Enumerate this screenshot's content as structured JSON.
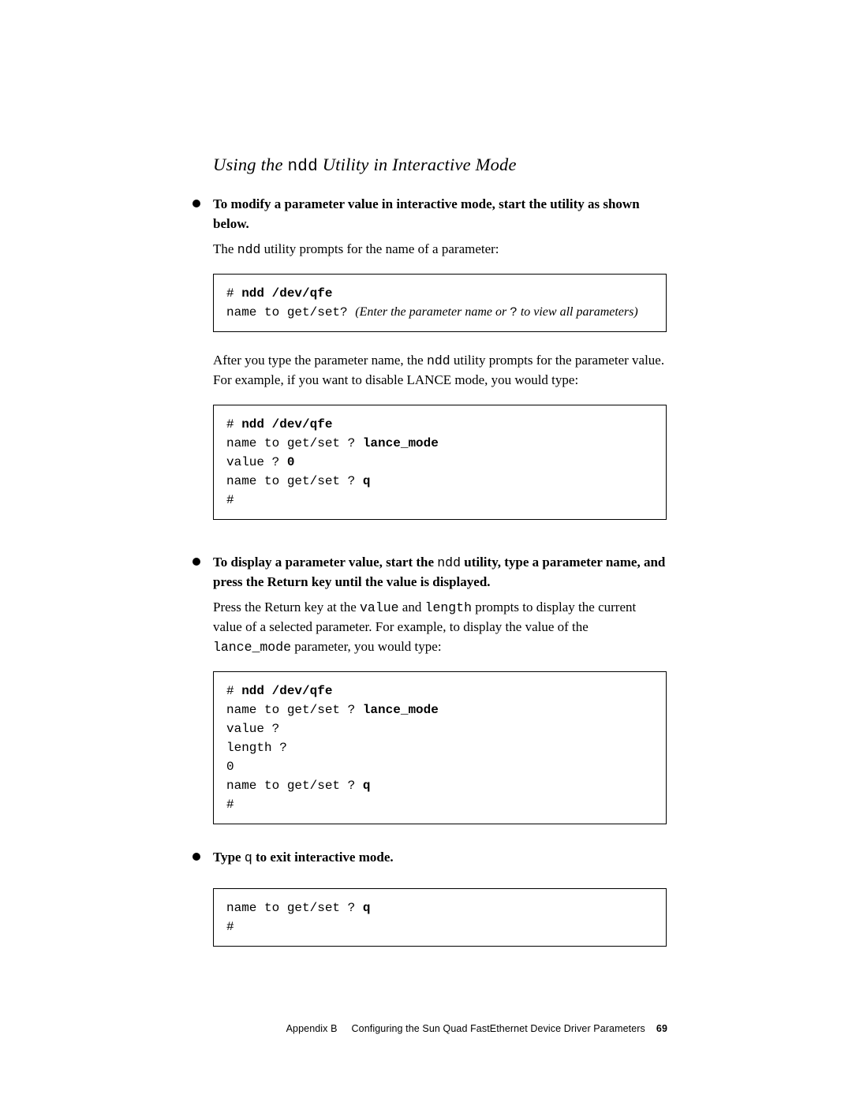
{
  "heading": {
    "pre": "Using the ",
    "mono": "ndd",
    "post": " Utility in Interactive Mode"
  },
  "item1": {
    "lead": "To modify a parameter value in interactive mode, start the utility as shown below.",
    "body": {
      "pre": "The ",
      "mono": "ndd",
      "post": " utility prompts for the name of a parameter:"
    },
    "code": {
      "l1_prefix": "# ",
      "l1_cmd": "ndd /dev/qfe",
      "l2_text": "name to get/set? ",
      "l2_italic_pre": "(Enter the parameter name or ",
      "l2_mono": "?",
      "l2_italic_post": " to view all parameters)"
    }
  },
  "after1": {
    "pre": "After you type the parameter name, the ",
    "mono": "ndd",
    "post": " utility prompts for the parameter value. For example, if you want to disable LANCE mode, you would type:"
  },
  "code2": {
    "l1_prefix": "# ",
    "l1_cmd": "ndd /dev/qfe",
    "l2_text": "name to get/set ? ",
    "l2_bold": "lance_mode",
    "l3_text": "value ? ",
    "l3_bold": "0",
    "l4_text": "name to get/set ? ",
    "l4_bold": "q",
    "l5_text": "#"
  },
  "item2": {
    "lead_pre": "To display a parameter value, start the ",
    "lead_mono": "ndd",
    "lead_post": " utility, type a parameter name, and press the Return key until the value is displayed.",
    "body_pre": "Press the Return key at the ",
    "body_mono1": "value",
    "body_mid1": " and ",
    "body_mono2": "length",
    "body_mid2": " prompts to display the current value of a selected parameter. For example, to display the value of the ",
    "body_mono3": "lance_mode",
    "body_post": " parameter, you would type:"
  },
  "code3": {
    "l1_prefix": "# ",
    "l1_cmd": "ndd /dev/qfe",
    "l2_text": "name to get/set ? ",
    "l2_bold": "lance_mode",
    "l3_text": "value ?",
    "l4_text": "length ?",
    "l5_text": "0",
    "l6_text": "name to get/set ? ",
    "l6_bold": "q",
    "l7_text": "#"
  },
  "item3": {
    "lead_pre": "Type ",
    "lead_mono": "q",
    "lead_post": " to exit interactive mode."
  },
  "code4": {
    "l1_text": "name to get/set ? ",
    "l1_bold": "q",
    "l2_text": "#"
  },
  "footer": {
    "appendix": "Appendix B",
    "title": "Configuring the Sun Quad FastEthernet Device Driver Parameters",
    "page": "69"
  }
}
